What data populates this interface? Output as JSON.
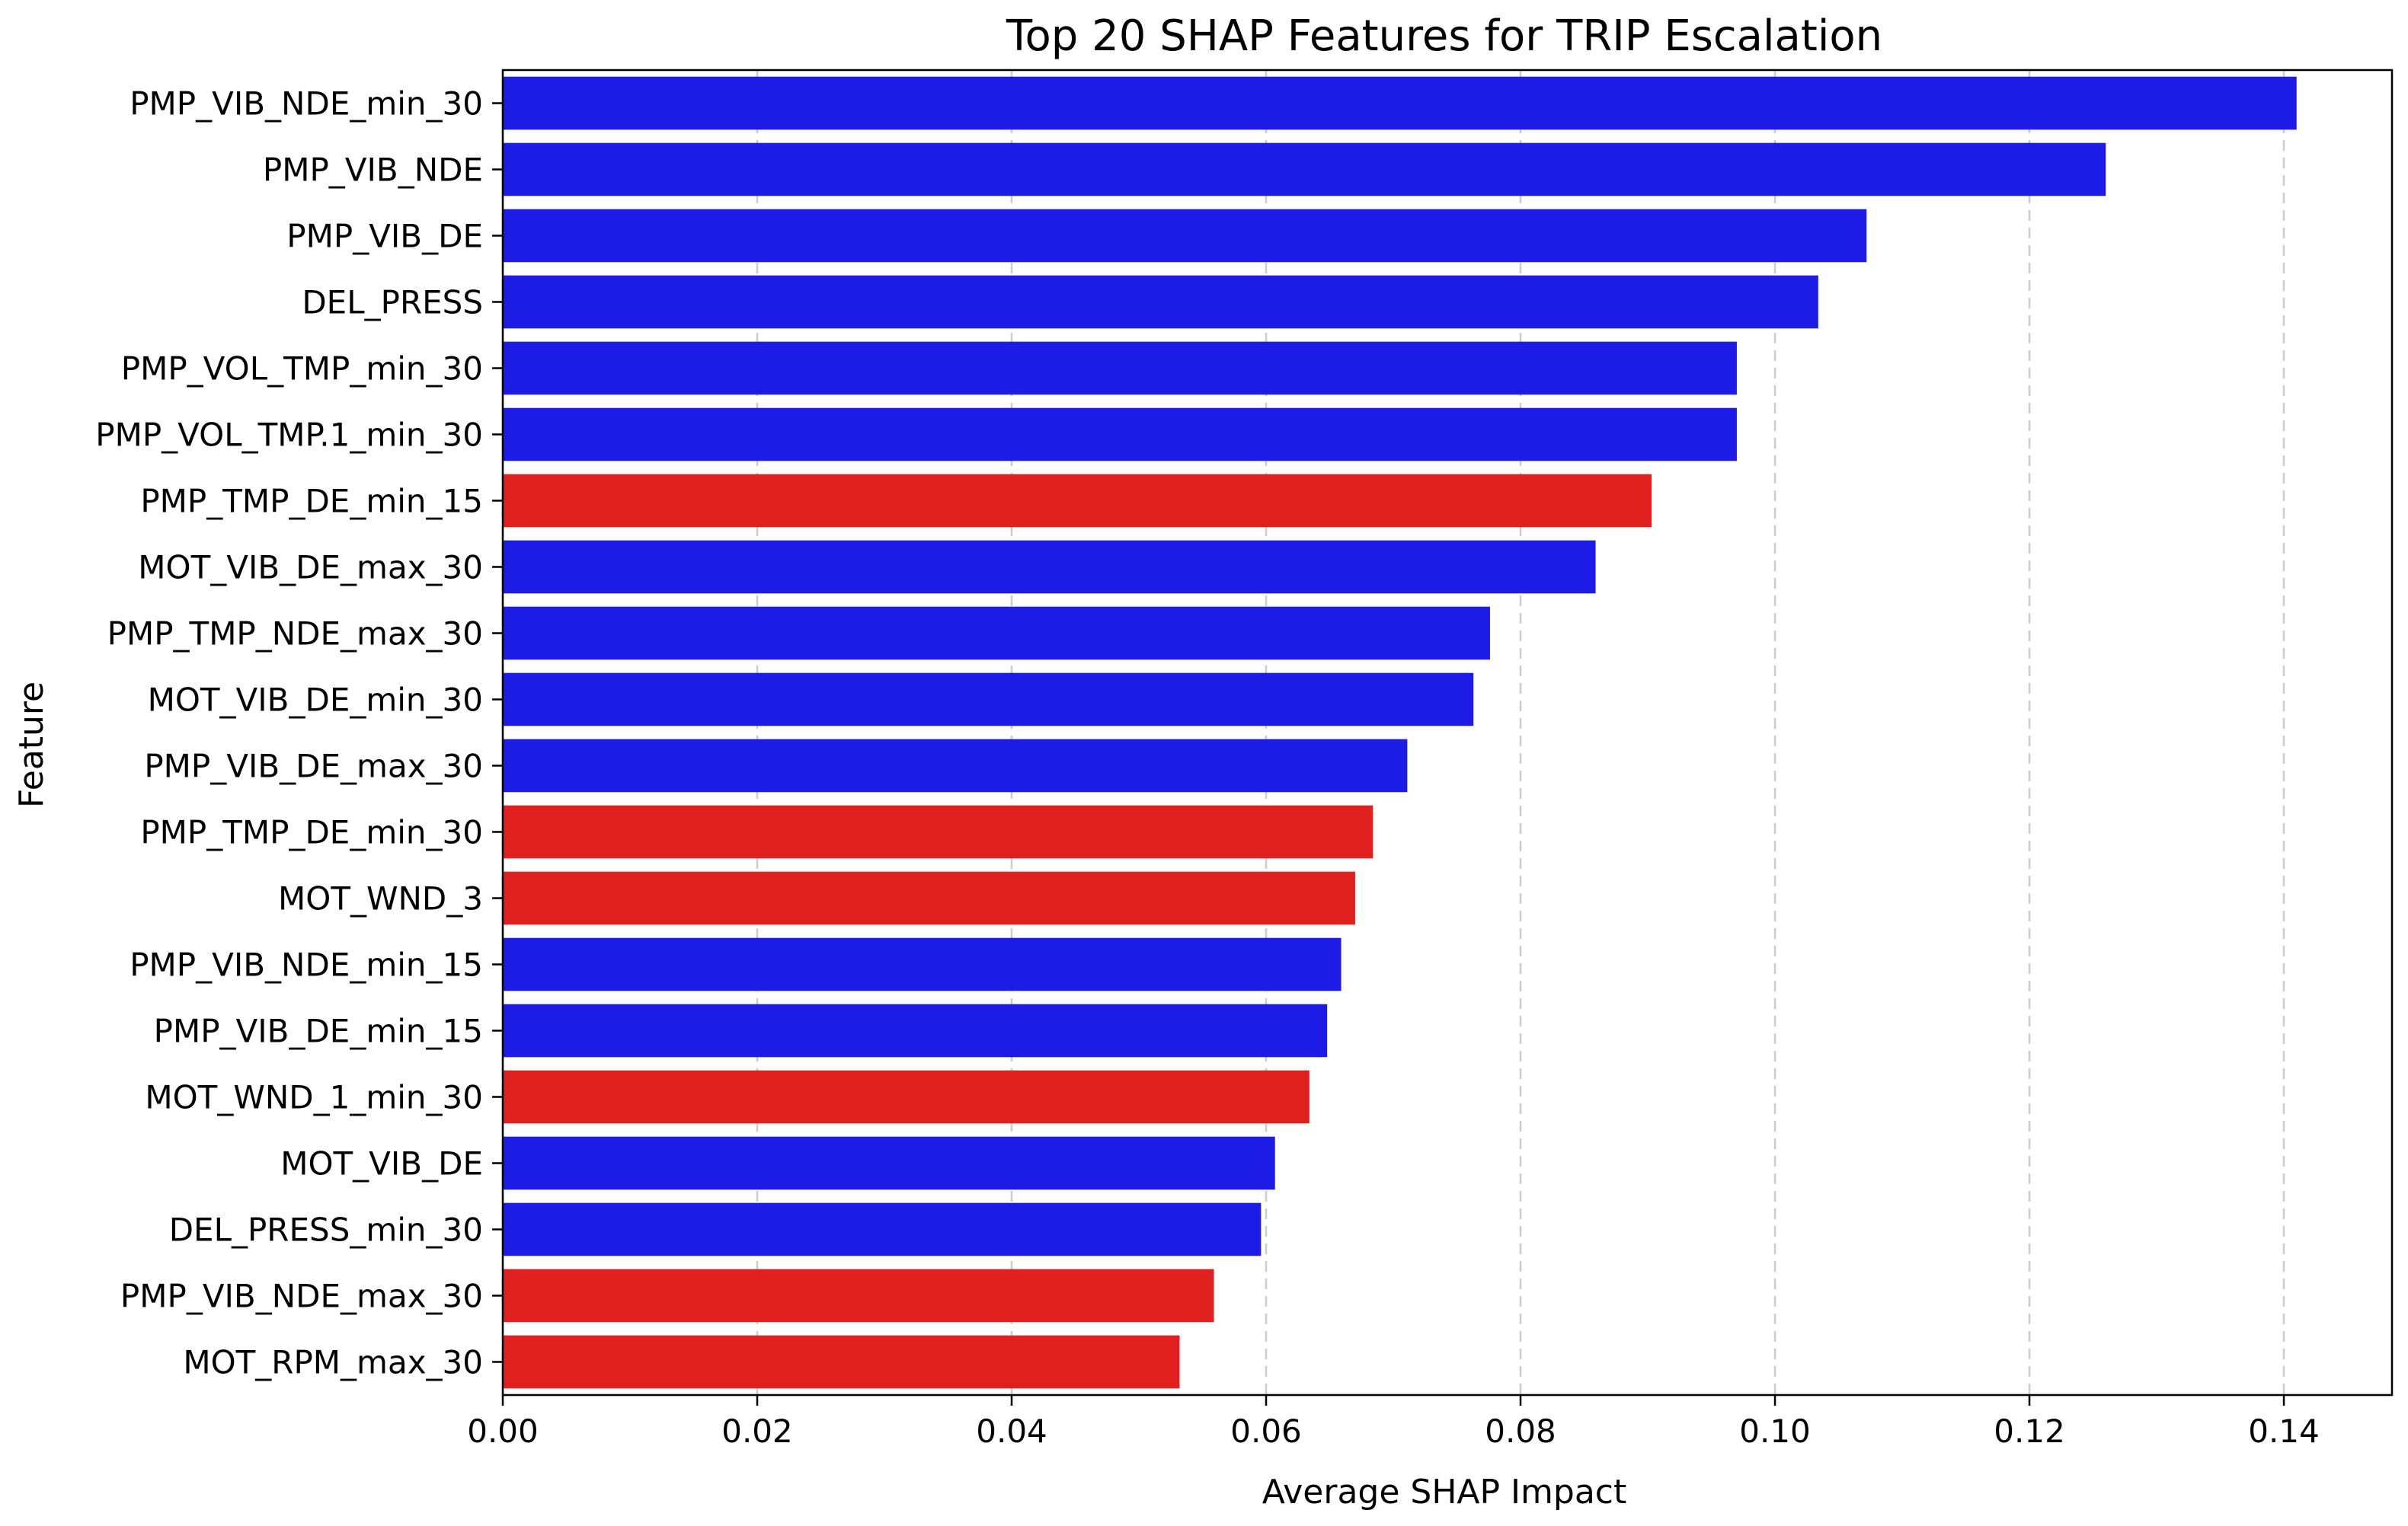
{
  "chart_data": {
    "type": "bar",
    "orientation": "horizontal",
    "title": "Top 20 SHAP Features for TRIP Escalation",
    "xlabel": "Average SHAP Impact",
    "ylabel": "Feature",
    "xlim": [
      0,
      0.1485
    ],
    "xticks": [
      0.0,
      0.02,
      0.04,
      0.06,
      0.08,
      0.1,
      0.12,
      0.14
    ],
    "xtick_labels": [
      "0.00",
      "0.02",
      "0.04",
      "0.06",
      "0.08",
      "0.10",
      "0.12",
      "0.14"
    ],
    "grid": "vertical dashed",
    "categories": [
      "PMP_VIB_NDE_min_30",
      "PMP_VIB_NDE",
      "PMP_VIB_DE",
      "DEL_PRESS",
      "PMP_VOL_TMP_min_30",
      "PMP_VOL_TMP.1_min_30",
      "PMP_TMP_DE_min_15",
      "MOT_VIB_DE_max_30",
      "PMP_TMP_NDE_max_30",
      "MOT_VIB_DE_min_30",
      "PMP_VIB_DE_max_30",
      "PMP_TMP_DE_min_30",
      "MOT_WND_3",
      "PMP_VIB_NDE_min_15",
      "PMP_VIB_DE_min_15",
      "MOT_WND_1_min_30",
      "MOT_VIB_DE",
      "DEL_PRESS_min_30",
      "PMP_VIB_NDE_max_30",
      "MOT_RPM_max_30"
    ],
    "values": [
      0.141,
      0.126,
      0.1072,
      0.1034,
      0.097,
      0.097,
      0.0903,
      0.0859,
      0.0776,
      0.0763,
      0.0711,
      0.0684,
      0.067,
      0.0659,
      0.0648,
      0.0634,
      0.0607,
      0.0596,
      0.0559,
      0.0532
    ],
    "bar_colors": [
      "#1c1ce6",
      "#1c1ce6",
      "#1c1ce6",
      "#1c1ce6",
      "#1c1ce6",
      "#1c1ce6",
      "#e01f1f",
      "#1c1ce6",
      "#1c1ce6",
      "#1c1ce6",
      "#1c1ce6",
      "#e01f1f",
      "#e01f1f",
      "#1c1ce6",
      "#1c1ce6",
      "#e01f1f",
      "#1c1ce6",
      "#1c1ce6",
      "#e01f1f",
      "#e01f1f"
    ],
    "colors": {
      "positive": "#1c1ce6",
      "negative": "#e01f1f",
      "grid": "#cccccc",
      "axes": "#000000"
    }
  }
}
